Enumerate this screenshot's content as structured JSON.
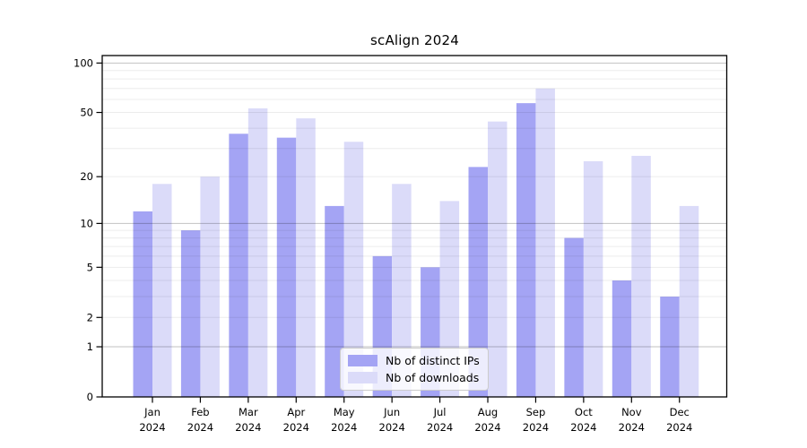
{
  "chart_data": {
    "type": "bar",
    "title": "scAlign 2024",
    "categories": [
      "Jan",
      "Feb",
      "Mar",
      "Apr",
      "May",
      "Jun",
      "Jul",
      "Aug",
      "Sep",
      "Oct",
      "Nov",
      "Dec"
    ],
    "category_year": "2024",
    "series": [
      {
        "name": "Nb of distinct IPs",
        "color": "#a4a4f4",
        "values": [
          12,
          9,
          37,
          35,
          13,
          6,
          5,
          23,
          57,
          8,
          4,
          3
        ]
      },
      {
        "name": "Nb of downloads",
        "color": "#dbdbf9",
        "values": [
          18,
          20,
          53,
          46,
          33,
          18,
          14,
          44,
          70,
          25,
          27,
          13
        ]
      }
    ],
    "yscale": "log1p",
    "ylim": [
      0,
      111
    ],
    "ytick_labels": [
      100,
      50,
      20,
      10,
      5,
      2,
      1,
      0
    ],
    "minor_gridlines": [
      2,
      3,
      4,
      5,
      6,
      7,
      8,
      9,
      20,
      30,
      40,
      50,
      60,
      70,
      80,
      90
    ],
    "major_gridlines": [
      1,
      10,
      100
    ],
    "grid": true,
    "legend_position": "lower center"
  }
}
